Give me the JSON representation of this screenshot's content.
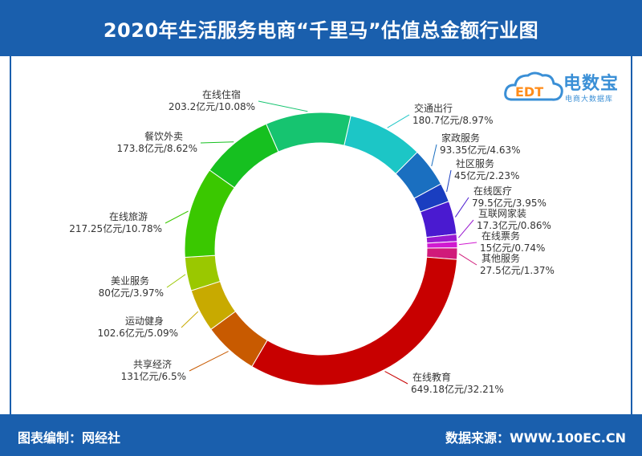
{
  "header": {
    "title": "2020年生活服务电商“千里马”估值总金额行业图"
  },
  "logo": {
    "text": "电数宝",
    "subtitle": "电商大数据库",
    "badge": "EDT",
    "color": "#3a8fd6"
  },
  "footer": {
    "left": "图表编制：网经社",
    "right": "数据来源：WWW.100EC.CN"
  },
  "colors": {
    "brand": "#1a5fad"
  },
  "chart_data": {
    "type": "pie",
    "variant": "donut",
    "unit": "亿元",
    "slices": [
      {
        "name": "交通出行",
        "value": 180.7,
        "percent": "8.97%",
        "label": "180.7亿元/8.97%",
        "color": "#1cc6c6"
      },
      {
        "name": "家政服务",
        "value": 93.35,
        "percent": "4.63%",
        "label": "93.35亿元/4.63%",
        "color": "#1a6fc0"
      },
      {
        "name": "社区服务",
        "value": 45,
        "percent": "2.23%",
        "label": "45亿元/2.23%",
        "color": "#1a3ec0"
      },
      {
        "name": "在线医疗",
        "value": 79.5,
        "percent": "3.95%",
        "label": "79.5亿元/3.95%",
        "color": "#4a1ad0"
      },
      {
        "name": "互联网家装",
        "value": 17.3,
        "percent": "0.86%",
        "label": "17.3亿元/0.86%",
        "color": "#9a1ad0"
      },
      {
        "name": "在线票务",
        "value": 15,
        "percent": "0.74%",
        "label": "15亿元/0.74%",
        "color": "#d01ad0"
      },
      {
        "name": "其他服务",
        "value": 27.5,
        "percent": "1.37%",
        "label": "27.5亿元/1.37%",
        "color": "#d01a7a"
      },
      {
        "name": "在线教育",
        "value": 649.18,
        "percent": "32.21%",
        "label": "649.18亿元/32.21%",
        "color": "#c80000"
      },
      {
        "name": "共享经济",
        "value": 131,
        "percent": "6.5%",
        "label": "131亿元/6.5%",
        "color": "#c85a00"
      },
      {
        "name": "运动健身",
        "value": 102.6,
        "percent": "5.09%",
        "label": "102.6亿元/5.09%",
        "color": "#c8aa00"
      },
      {
        "name": "美业服务",
        "value": 80,
        "percent": "3.97%",
        "label": "80亿元/3.97%",
        "color": "#9ac800"
      },
      {
        "name": "在线旅游",
        "value": 217.25,
        "percent": "10.78%",
        "label": "217.25亿元/10.78%",
        "color": "#3ac800"
      },
      {
        "name": "餐饮外卖",
        "value": 173.8,
        "percent": "8.62%",
        "label": "173.8亿元/8.62%",
        "color": "#16c020"
      },
      {
        "name": "在线住宿",
        "value": 203.2,
        "percent": "10.08%",
        "label": "203.2亿元/10.08%",
        "color": "#16c470"
      }
    ]
  }
}
